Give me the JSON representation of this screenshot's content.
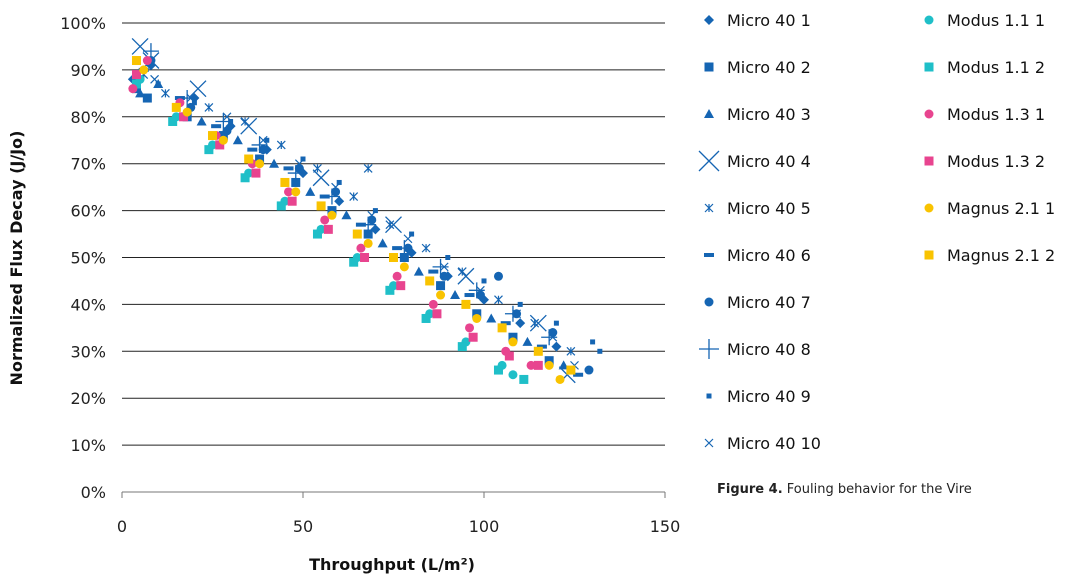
{
  "caption": {
    "label": "Figure 4.",
    "text": "Fouling behavior for the Vire"
  },
  "chart_data": {
    "type": "scatter",
    "xlabel": "Throughput (L/m²)",
    "ylabel": "Normalized Flux Decay (J/Jo)",
    "xlim": [
      0,
      150
    ],
    "ylim": [
      0,
      100
    ],
    "x_ticks": [
      "0",
      "50",
      "100",
      "150"
    ],
    "y_ticks": [
      "0%",
      "10%",
      "20%",
      "30%",
      "40%",
      "50%",
      "60%",
      "70%",
      "80%",
      "90%",
      "100%"
    ],
    "grid": "horizontal",
    "legend_position": "right",
    "series": [
      {
        "name": "Micro 40 1",
        "marker": "diamond",
        "color": "#1565b3",
        "x": [
          3,
          8,
          20,
          30,
          40,
          50,
          60,
          70,
          80,
          90,
          100,
          110,
          120
        ],
        "y": [
          88,
          91,
          84,
          78,
          73,
          68,
          62,
          56,
          51,
          46,
          41,
          36,
          31
        ]
      },
      {
        "name": "Micro 40 2",
        "marker": "square",
        "color": "#1565b3",
        "x": [
          4,
          7,
          18,
          28,
          38,
          48,
          58,
          68,
          78,
          88,
          98,
          108,
          118
        ],
        "y": [
          86,
          84,
          80,
          76,
          71,
          66,
          60,
          55,
          50,
          44,
          38,
          33,
          28
        ]
      },
      {
        "name": "Micro 40 3",
        "marker": "triangle",
        "color": "#1565b3",
        "x": [
          5,
          10,
          22,
          32,
          42,
          52,
          62,
          72,
          82,
          92,
          102,
          112,
          122
        ],
        "y": [
          85,
          87,
          79,
          75,
          70,
          64,
          59,
          53,
          47,
          42,
          37,
          32,
          27
        ]
      },
      {
        "name": "Micro 40 4",
        "marker": "bigx",
        "color": "#1565b3",
        "x": [
          5,
          8,
          21,
          35,
          55,
          75,
          95,
          115,
          123
        ],
        "y": [
          95,
          92,
          86,
          78,
          67,
          57,
          46,
          36,
          25
        ]
      },
      {
        "name": "Micro 40 5",
        "marker": "star",
        "color": "#1565b3",
        "x": [
          6,
          12,
          24,
          34,
          44,
          54,
          64,
          68,
          74,
          84,
          94,
          104,
          114,
          124
        ],
        "y": [
          89,
          85,
          82,
          79,
          74,
          69,
          63,
          69,
          57,
          52,
          47,
          41,
          36,
          30
        ]
      },
      {
        "name": "Micro 40 6",
        "marker": "dash",
        "color": "#1565b3",
        "x": [
          6,
          16,
          26,
          36,
          46,
          56,
          66,
          76,
          86,
          96,
          106,
          116,
          126
        ],
        "y": [
          90,
          84,
          78,
          73,
          69,
          63,
          57,
          52,
          47,
          42,
          36,
          31,
          25
        ]
      },
      {
        "name": "Micro 40 7",
        "marker": "circle",
        "color": "#1565b3",
        "x": [
          8,
          19,
          29,
          39,
          49,
          59,
          69,
          79,
          89,
          99,
          104,
          109,
          119,
          129
        ],
        "y": [
          92,
          82,
          77,
          73,
          69,
          64,
          58,
          52,
          46,
          42,
          46,
          38,
          34,
          26
        ]
      },
      {
        "name": "Micro 40 8",
        "marker": "plus",
        "color": "#1565b3",
        "x": [
          8,
          18,
          28,
          38,
          48,
          58,
          68,
          78,
          88,
          98,
          108,
          118
        ],
        "y": [
          94,
          84,
          79,
          74,
          68,
          63,
          57,
          52,
          48,
          43,
          38,
          33
        ]
      },
      {
        "name": "Micro 40 9",
        "marker": "smallsquare",
        "color": "#1565b3",
        "x": [
          10,
          20,
          30,
          40,
          50,
          60,
          70,
          80,
          90,
          100,
          110,
          120,
          130,
          132
        ],
        "y": [
          87,
          83,
          79,
          75,
          71,
          66,
          60,
          55,
          50,
          45,
          40,
          36,
          32,
          30
        ]
      },
      {
        "name": "Micro 40 10",
        "marker": "smallx",
        "color": "#1565b3",
        "x": [
          9,
          19,
          29,
          39,
          49,
          59,
          69,
          79,
          89,
          99,
          109,
          119,
          125
        ],
        "y": [
          88,
          84,
          80,
          75,
          70,
          65,
          59,
          54,
          48,
          43,
          38,
          33,
          27
        ]
      },
      {
        "name": "Modus 1.1 1",
        "marker": "circle",
        "color": "#1fbfc8",
        "x": [
          5,
          15,
          25,
          35,
          45,
          55,
          65,
          75,
          85,
          95,
          105,
          108
        ],
        "y": [
          88,
          80,
          74,
          68,
          62,
          56,
          50,
          44,
          38,
          32,
          27,
          25
        ]
      },
      {
        "name": "Modus 1.1 2",
        "marker": "square",
        "color": "#1fbfc8",
        "x": [
          4,
          14,
          24,
          34,
          44,
          54,
          64,
          74,
          84,
          94,
          104,
          111
        ],
        "y": [
          87,
          79,
          73,
          67,
          61,
          55,
          49,
          43,
          37,
          31,
          26,
          24
        ]
      },
      {
        "name": "Modus 1.3 1",
        "marker": "circle",
        "color": "#e8448f",
        "x": [
          3,
          7,
          16,
          26,
          36,
          46,
          56,
          66,
          76,
          86,
          96,
          106,
          113
        ],
        "y": [
          86,
          92,
          83,
          76,
          70,
          64,
          58,
          52,
          46,
          40,
          35,
          30,
          27
        ]
      },
      {
        "name": "Modus 1.3 2",
        "marker": "square",
        "color": "#e8448f",
        "x": [
          4,
          17,
          27,
          37,
          47,
          57,
          67,
          77,
          87,
          97,
          107,
          115
        ],
        "y": [
          89,
          80,
          74,
          68,
          62,
          56,
          50,
          44,
          38,
          33,
          29,
          27
        ]
      },
      {
        "name": "Magnus 2.1 1",
        "marker": "circle",
        "color": "#f9c300",
        "x": [
          6,
          18,
          28,
          38,
          48,
          58,
          68,
          78,
          88,
          98,
          108,
          118,
          121
        ],
        "y": [
          90,
          81,
          75,
          70,
          64,
          59,
          53,
          48,
          42,
          37,
          32,
          27,
          24
        ]
      },
      {
        "name": "Magnus 2.1 2",
        "marker": "square",
        "color": "#f9c300",
        "x": [
          4,
          15,
          25,
          35,
          45,
          55,
          65,
          75,
          85,
          95,
          105,
          115,
          124
        ],
        "y": [
          92,
          82,
          76,
          71,
          66,
          61,
          55,
          50,
          45,
          40,
          35,
          30,
          26
        ]
      }
    ]
  }
}
